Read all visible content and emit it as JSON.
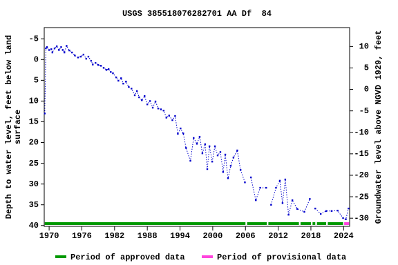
{
  "chart_data": {
    "type": "line",
    "title": "USGS 385518076282701 AA Df  84",
    "ylabel": [
      "Depth to water level, feet below land",
      "surface"
    ],
    "y2label": "Groundwater level above NGVD 1929, feet",
    "x": [
      1969.2,
      1969.4,
      1969.6,
      1970,
      1970.4,
      1970.6,
      1971,
      1971.4,
      1971.8,
      1972.2,
      1972.5,
      1972.8,
      1973.2,
      1973.7,
      1974.2,
      1974.7,
      1975.3,
      1975.8,
      1976.3,
      1976.8,
      1977.2,
      1977.7,
      1978,
      1978.5,
      1979,
      1979.5,
      1980,
      1980.5,
      1980.9,
      1981.3,
      1981.7,
      1982.3,
      1982.7,
      1983.2,
      1983.6,
      1984.1,
      1984.6,
      1985.1,
      1985.7,
      1986.1,
      1986.5,
      1987,
      1987.5,
      1988,
      1988.5,
      1989,
      1989.5,
      1990,
      1990.5,
      1991,
      1991.5,
      1992,
      1992.6,
      1993.1,
      1993.6,
      1994.1,
      1994.6,
      1995.1,
      1995.9,
      1996.5,
      1997.1,
      1997.6,
      1998.1,
      1998.6,
      1999,
      1999.4,
      1999.9,
      2000.4,
      2000.9,
      2001.4,
      2001.9,
      2002.3,
      2002.8,
      2003.3,
      2003.8,
      2004.5,
      2005.1,
      2005.9,
      2006.4,
      2007,
      2007.9,
      2008.7,
      2009.8,
      2010.3,
      2010.7,
      2011.6,
      2012.3,
      2012.8,
      2013.3,
      2013.9,
      2014.6,
      2015.5,
      2016.8,
      2017.8,
      2018.3,
      2018.8,
      2019.8,
      2020.8,
      2021.8,
      2022.9,
      2023.9,
      2024.4,
      2024.9
    ],
    "series": [
      {
        "color": "#0000cc",
        "values": [
          13,
          -2.7,
          -3,
          -2.3,
          -2.5,
          -1.7,
          -2.7,
          -3.2,
          -2.3,
          -3,
          -2.3,
          -1.7,
          -3.3,
          -2.2,
          -1.7,
          -1,
          -0.5,
          -0.7,
          -1.2,
          -0.2,
          -0.7,
          0.3,
          1.2,
          0.8,
          1.3,
          1.5,
          2,
          2.5,
          2.3,
          3,
          3.3,
          4.3,
          5.1,
          4.5,
          5.8,
          5.3,
          6.6,
          7,
          8.6,
          7.6,
          9.1,
          9.8,
          8.8,
          10.8,
          10,
          11.6,
          10.1,
          11.8,
          12,
          12.3,
          14,
          13.5,
          14.6,
          13.6,
          17.9,
          16.6,
          17.8,
          21.3,
          24.4,
          18.9,
          20.3,
          18.6,
          22.6,
          20.4,
          26.4,
          20.9,
          24.6,
          20.9,
          23.1,
          22.3,
          27.1,
          22.9,
          28.6,
          25.6,
          23.6,
          21.9,
          26.6,
          29.6,
          null,
          28.4,
          33.9,
          30.9,
          30.9,
          null,
          35,
          30.9,
          29.2,
          34.6,
          28.9,
          37.4,
          33.9,
          36,
          36.7,
          33.6,
          null,
          35.9,
          37.2,
          36.5,
          36.5,
          36.4,
          38.2,
          38.5,
          35.9
        ]
      }
    ],
    "xlim": [
      1969.1,
      2025.1
    ],
    "xticks": [
      1970,
      1976,
      1982,
      1988,
      1994,
      2000,
      2006,
      2012,
      2018,
      2024
    ],
    "ylim": [
      -7.7,
      40.2
    ],
    "y_inverted": true,
    "yticks": [
      -5,
      0,
      5,
      10,
      15,
      20,
      25,
      30,
      35,
      40
    ],
    "y2lim": [
      -31.9,
      14.4
    ],
    "y2ticks": [
      10,
      5,
      0,
      -5,
      -10,
      -15,
      -20,
      -25,
      -30
    ],
    "periods": {
      "approved": {
        "label": "Period of approved data",
        "color": "#009900",
        "ranges": [
          [
            1969.2,
            2006
          ],
          [
            2006.3,
            2009.9
          ],
          [
            2010.2,
            2015.8
          ],
          [
            2016.1,
            2018
          ],
          [
            2018.3,
            2018.8
          ],
          [
            2019.1,
            2020.8
          ],
          [
            2021.1,
            2023.9
          ]
        ]
      },
      "provisional": {
        "label": "Period of provisional data",
        "color": "#ff44dd",
        "ranges": [
          [
            2024.1,
            2025
          ]
        ]
      }
    }
  }
}
